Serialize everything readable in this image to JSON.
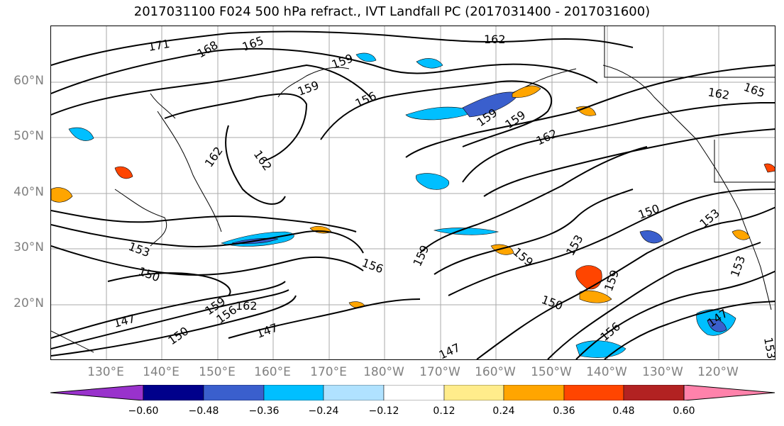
{
  "title": "2017031100 F024 500 hPa refract., IVT Landfall PC (2017031400 - 2017031600)",
  "lat_labels": [
    "60°N",
    "50°N",
    "40°N",
    "30°N",
    "20°N"
  ],
  "lon_labels": [
    "130°E",
    "140°E",
    "150°E",
    "160°E",
    "170°E",
    "180°W",
    "170°W",
    "160°W",
    "150°W",
    "140°W",
    "130°W",
    "120°W"
  ],
  "contour_labels": [
    "171",
    "168",
    "165",
    "162",
    "159",
    "159",
    "156",
    "159",
    "159",
    "162",
    "162",
    "165",
    "162",
    "162",
    "153",
    "150",
    "156",
    "159",
    "159",
    "153",
    "150",
    "150",
    "153",
    "159",
    "156",
    "147",
    "159",
    "156",
    "162",
    "147",
    "147",
    "153",
    "147",
    "150",
    "153"
  ],
  "colorbar": {
    "ticks": [
      "−0.60",
      "−0.48",
      "−0.36",
      "−0.24",
      "−0.12",
      "0.12",
      "0.24",
      "0.36",
      "0.48",
      "0.60"
    ],
    "colors": [
      "#9932cc",
      "#00008b",
      "#3a5fcd",
      "#00bfff",
      "#b0e2ff",
      "#ffffff",
      "#ffec8b",
      "#ffa500",
      "#ff4500",
      "#b22222",
      "#ff82ab"
    ]
  },
  "colors": {
    "grid": "#aaaaaa",
    "axis_label": "#808080",
    "contour": "#000000"
  }
}
